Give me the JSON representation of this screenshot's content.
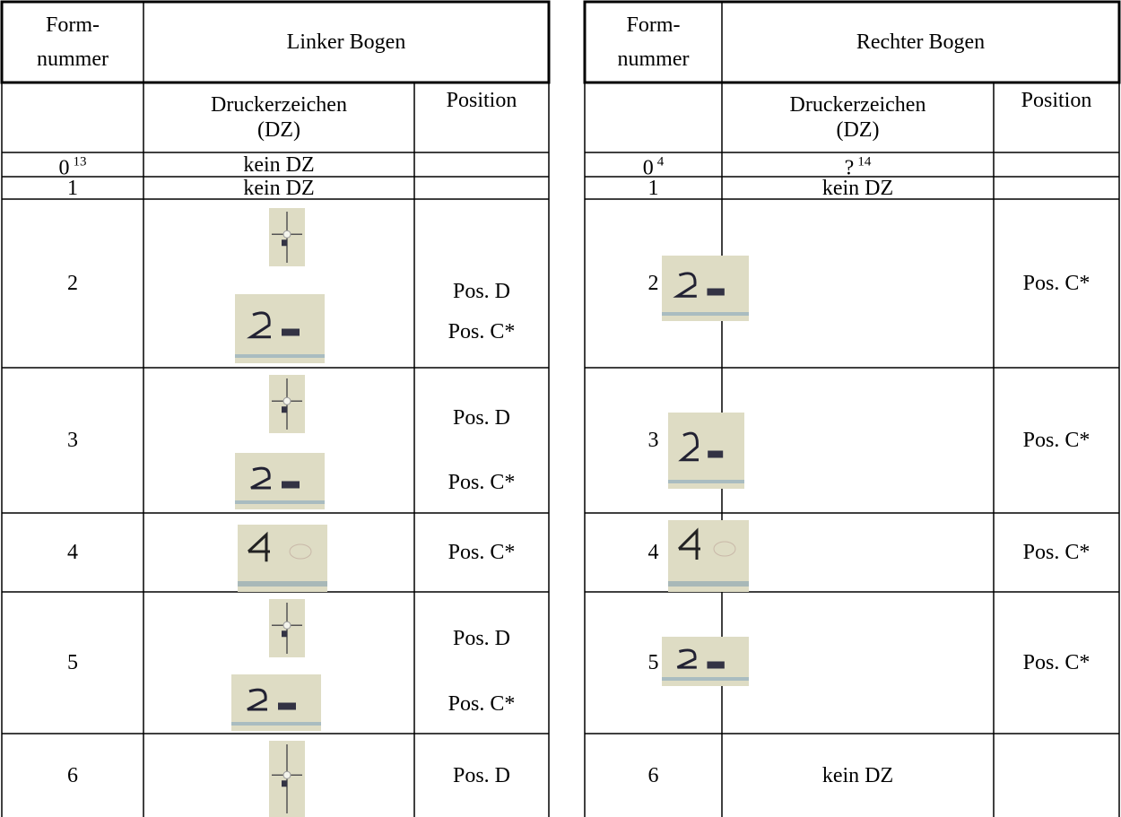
{
  "left": {
    "header": {
      "form": [
        "Form-",
        "nummer"
      ],
      "title": "Linker Bogen"
    },
    "subheader": {
      "mark": [
        "Druckerzeichen",
        "(DZ)"
      ],
      "position": "Position"
    },
    "rows": [
      {
        "form": "0",
        "note": "13",
        "mark": "kein DZ"
      },
      {
        "form": "1",
        "mark": "kein DZ"
      },
      {
        "form": "2",
        "positions": [
          "Pos. D",
          "Pos. C*"
        ]
      },
      {
        "form": "3",
        "positions": [
          "Pos. D",
          "Pos. C*"
        ]
      },
      {
        "form": "4",
        "positions": [
          "Pos. C*"
        ]
      },
      {
        "form": "5",
        "positions": [
          "Pos. D",
          "Pos. C*"
        ]
      },
      {
        "form": "6",
        "positions": [
          "Pos. D"
        ]
      }
    ]
  },
  "right": {
    "header": {
      "form": [
        "Form-",
        "nummer"
      ],
      "title": "Rechter Bogen"
    },
    "subheader": {
      "mark": [
        "Druckerzeichen",
        "(DZ)"
      ],
      "position": "Position"
    },
    "rows": [
      {
        "form": "0",
        "note": "4",
        "mark": "?",
        "mark_note": "14"
      },
      {
        "form": "1",
        "mark": "kein DZ"
      },
      {
        "form": "2",
        "positions": [
          "Pos. C*"
        ]
      },
      {
        "form": "3",
        "positions": [
          "Pos. C*"
        ]
      },
      {
        "form": "4",
        "positions": [
          "Pos. C*"
        ]
      },
      {
        "form": "5",
        "positions": [
          "Pos. C*"
        ]
      },
      {
        "form": "6",
        "mark": "kein DZ"
      }
    ]
  }
}
